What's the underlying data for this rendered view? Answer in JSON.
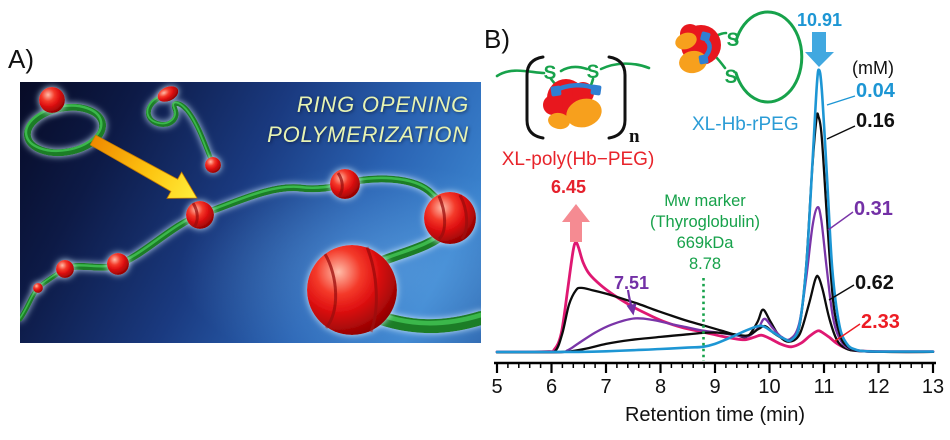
{
  "panel_a": {
    "label": "A)",
    "title_line1": "RING OPENING",
    "title_line2": "POLYMERIZATION"
  },
  "panel_b": {
    "label": "B)",
    "schematic_poly": {
      "label": "XL-poly(Hb−PEG)",
      "label_color": "#e8242b",
      "s_left": "S",
      "s_right": "S",
      "subscript": "n"
    },
    "schematic_ring": {
      "label": "XL-Hb-rPEG",
      "label_color": "#2b9cd6",
      "s_top": "S",
      "s_bottom": "S"
    },
    "scheme_green": "#17a24b",
    "scheme_red": "#e8171e",
    "scheme_orange": "#f7a01d",
    "scheme_blue_link": "#2f7fd2"
  },
  "chart_data": {
    "type": "line",
    "title": "",
    "xlabel": "Retention time (min)",
    "ylabel": "",
    "xlim": [
      5,
      13
    ],
    "ylim": [
      0,
      1.05
    ],
    "grid": false,
    "legend_position": "right",
    "legend_units": "(mM)",
    "x_ticks": [
      5,
      6,
      7,
      8,
      9,
      10,
      11,
      12,
      13
    ],
    "minor_tick_step": 0.2,
    "marker": {
      "x": 8.78,
      "color": "#17a24b",
      "lines": [
        "Mw marker",
        "(Thyroglobulin)",
        "669kDa",
        "8.78"
      ]
    },
    "annotations": [
      {
        "text": "6.45",
        "x": 6.45,
        "color": "#e5202c",
        "arrow_color": "#f58b92",
        "arrow_dir": "up"
      },
      {
        "text": "7.51",
        "x": 7.51,
        "color": "#7330a6",
        "arrow_color": "#7330a6",
        "arrow_dir": "down"
      },
      {
        "text": "10.91",
        "x": 10.91,
        "color": "#1d96d4",
        "arrow_color": "#41a8e0",
        "arrow_dir": "down"
      }
    ],
    "series": [
      {
        "name": "0.04",
        "color": "#1d96d4",
        "label_color": "#1d96d4",
        "points": [
          [
            5,
            0.004
          ],
          [
            5.5,
            0.004
          ],
          [
            6,
            0.004
          ],
          [
            6.5,
            0.004
          ],
          [
            7,
            0.006
          ],
          [
            7.5,
            0.01
          ],
          [
            8,
            0.014
          ],
          [
            8.5,
            0.019
          ],
          [
            8.78,
            0.022
          ],
          [
            9,
            0.032
          ],
          [
            9.3,
            0.056
          ],
          [
            9.6,
            0.082
          ],
          [
            9.85,
            0.096
          ],
          [
            10.05,
            0.075
          ],
          [
            10.25,
            0.052
          ],
          [
            10.4,
            0.046
          ],
          [
            10.55,
            0.1
          ],
          [
            10.68,
            0.32
          ],
          [
            10.79,
            0.68
          ],
          [
            10.87,
            0.95
          ],
          [
            10.91,
            1.0
          ],
          [
            10.96,
            0.93
          ],
          [
            11.05,
            0.64
          ],
          [
            11.15,
            0.3
          ],
          [
            11.28,
            0.1
          ],
          [
            11.42,
            0.032
          ],
          [
            11.58,
            0.012
          ],
          [
            11.8,
            0.006
          ],
          [
            12.4,
            0.005
          ],
          [
            13,
            0.005
          ]
        ]
      },
      {
        "name": "0.16",
        "color": "#0c0c0c",
        "label_color": "#111111",
        "points": [
          [
            5,
            0.003
          ],
          [
            6,
            0.003
          ],
          [
            6.3,
            0.005
          ],
          [
            6.6,
            0.014
          ],
          [
            7,
            0.032
          ],
          [
            7.45,
            0.046
          ],
          [
            8,
            0.057
          ],
          [
            8.5,
            0.066
          ],
          [
            8.78,
            0.071
          ],
          [
            9.05,
            0.072
          ],
          [
            9.35,
            0.066
          ],
          [
            9.6,
            0.062
          ],
          [
            9.8,
            0.085
          ],
          [
            9.92,
            0.095
          ],
          [
            10.08,
            0.07
          ],
          [
            10.25,
            0.051
          ],
          [
            10.4,
            0.047
          ],
          [
            10.55,
            0.095
          ],
          [
            10.67,
            0.3
          ],
          [
            10.78,
            0.64
          ],
          [
            10.86,
            0.825
          ],
          [
            10.9,
            0.835
          ],
          [
            10.96,
            0.76
          ],
          [
            11.06,
            0.46
          ],
          [
            11.17,
            0.18
          ],
          [
            11.3,
            0.06
          ],
          [
            11.45,
            0.02
          ],
          [
            11.65,
            0.008
          ],
          [
            12.1,
            0.004
          ],
          [
            13,
            0.004
          ]
        ]
      },
      {
        "name": "0.31",
        "color": "#7a35a8",
        "label_color": "#7330a6",
        "points": [
          [
            5,
            0.003
          ],
          [
            6.1,
            0.003
          ],
          [
            6.3,
            0.01
          ],
          [
            6.5,
            0.035
          ],
          [
            6.8,
            0.072
          ],
          [
            7.1,
            0.1
          ],
          [
            7.51,
            0.122
          ],
          [
            7.85,
            0.117
          ],
          [
            8.2,
            0.102
          ],
          [
            8.5,
            0.09
          ],
          [
            8.78,
            0.079
          ],
          [
            9.1,
            0.071
          ],
          [
            9.4,
            0.062
          ],
          [
            9.62,
            0.06
          ],
          [
            9.8,
            0.09
          ],
          [
            9.91,
            0.121
          ],
          [
            10.06,
            0.088
          ],
          [
            10.22,
            0.057
          ],
          [
            10.38,
            0.049
          ],
          [
            10.54,
            0.1
          ],
          [
            10.67,
            0.26
          ],
          [
            10.79,
            0.45
          ],
          [
            10.88,
            0.515
          ],
          [
            10.95,
            0.47
          ],
          [
            11.05,
            0.3
          ],
          [
            11.17,
            0.12
          ],
          [
            11.32,
            0.04
          ],
          [
            11.5,
            0.013
          ],
          [
            11.75,
            0.006
          ],
          [
            12.2,
            0.004
          ],
          [
            13,
            0.004
          ]
        ]
      },
      {
        "name": "0.62",
        "color": "#0c0c0c",
        "label_color": "#111111",
        "points": [
          [
            5,
            0.003
          ],
          [
            5.9,
            0.004
          ],
          [
            6.08,
            0.01
          ],
          [
            6.2,
            0.07
          ],
          [
            6.32,
            0.17
          ],
          [
            6.45,
            0.222
          ],
          [
            6.55,
            0.23
          ],
          [
            6.75,
            0.222
          ],
          [
            7,
            0.21
          ],
          [
            7.3,
            0.192
          ],
          [
            7.6,
            0.173
          ],
          [
            7.9,
            0.152
          ],
          [
            8.2,
            0.132
          ],
          [
            8.5,
            0.113
          ],
          [
            8.78,
            0.098
          ],
          [
            9.1,
            0.08
          ],
          [
            9.4,
            0.063
          ],
          [
            9.6,
            0.059
          ],
          [
            9.78,
            0.11
          ],
          [
            9.88,
            0.153
          ],
          [
            10.02,
            0.11
          ],
          [
            10.18,
            0.06
          ],
          [
            10.35,
            0.04
          ],
          [
            10.55,
            0.065
          ],
          [
            10.72,
            0.17
          ],
          [
            10.84,
            0.26
          ],
          [
            10.9,
            0.268
          ],
          [
            10.98,
            0.22
          ],
          [
            11.1,
            0.12
          ],
          [
            11.24,
            0.045
          ],
          [
            11.4,
            0.016
          ],
          [
            11.62,
            0.007
          ],
          [
            12.1,
            0.004
          ],
          [
            13,
            0.004
          ]
        ]
      },
      {
        "name": "2.33",
        "color": "#df1872",
        "label_color": "#ed1c24",
        "points": [
          [
            5,
            0.004
          ],
          [
            5.9,
            0.005
          ],
          [
            6.05,
            0.012
          ],
          [
            6.18,
            0.07
          ],
          [
            6.3,
            0.23
          ],
          [
            6.4,
            0.365
          ],
          [
            6.45,
            0.39
          ],
          [
            6.5,
            0.37
          ],
          [
            6.58,
            0.32
          ],
          [
            6.7,
            0.278
          ],
          [
            6.9,
            0.24
          ],
          [
            7.15,
            0.204
          ],
          [
            7.45,
            0.168
          ],
          [
            7.75,
            0.138
          ],
          [
            8.05,
            0.112
          ],
          [
            8.4,
            0.09
          ],
          [
            8.78,
            0.074
          ],
          [
            9.1,
            0.06
          ],
          [
            9.35,
            0.051
          ],
          [
            9.55,
            0.047
          ],
          [
            9.72,
            0.056
          ],
          [
            9.85,
            0.063
          ],
          [
            10,
            0.052
          ],
          [
            10.2,
            0.032
          ],
          [
            10.4,
            0.022
          ],
          [
            10.58,
            0.035
          ],
          [
            10.75,
            0.062
          ],
          [
            10.88,
            0.078
          ],
          [
            10.95,
            0.075
          ],
          [
            11.1,
            0.055
          ],
          [
            11.25,
            0.032
          ],
          [
            11.45,
            0.014
          ],
          [
            11.7,
            0.007
          ],
          [
            12.2,
            0.005
          ],
          [
            13,
            0.005
          ]
        ]
      }
    ]
  }
}
